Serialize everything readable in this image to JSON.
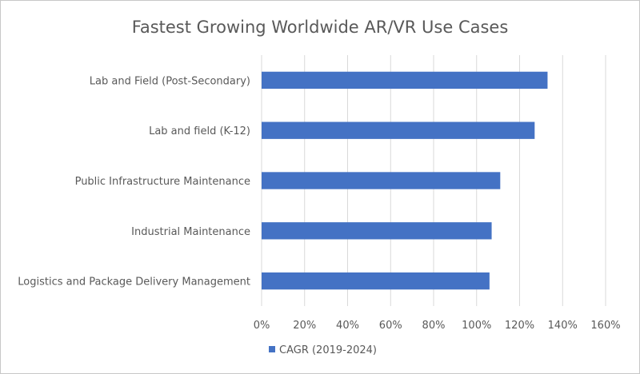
{
  "chart_data": {
    "type": "bar",
    "orientation": "horizontal",
    "title": "Fastest Growing Worldwide AR/VR Use Cases",
    "categories": [
      "Lab and Field (Post-Secondary)",
      "Lab and field (K-12)",
      "Public Infrastructure Maintenance",
      "Industrial Maintenance",
      "Logistics and Package Delivery Management"
    ],
    "series": [
      {
        "name": "CAGR (2019-2024)",
        "values": [
          133,
          127,
          111,
          107,
          106
        ],
        "color": "#4472C4"
      }
    ],
    "xlabel": "",
    "ylabel": "",
    "xlim": [
      0,
      160
    ],
    "x_ticks": [
      "0%",
      "20%",
      "40%",
      "60%",
      "80%",
      "100%",
      "120%",
      "140%",
      "160%"
    ],
    "grid": true,
    "legend_position": "bottom-left"
  }
}
